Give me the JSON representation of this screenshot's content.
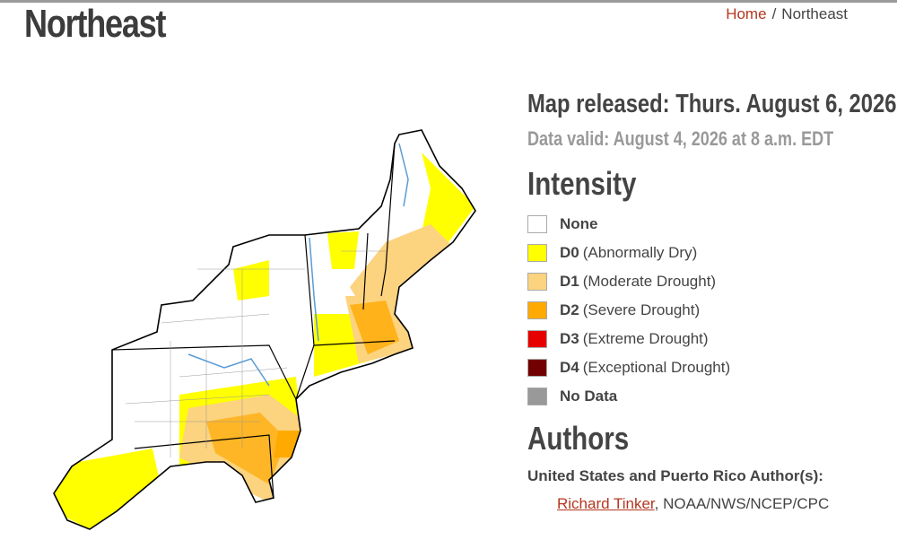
{
  "header": {
    "title": "Northeast",
    "breadcrumb": [
      "Home",
      "/",
      "Northeast"
    ]
  },
  "map_info": {
    "released": "Map released: Thurs. August 6, 2026",
    "valid": "Data valid: August 4, 2026 at 8 a.m. EDT"
  },
  "legend": {
    "title": "Intensity",
    "items": [
      {
        "code": "None",
        "label": "",
        "color": "#ffffff"
      },
      {
        "code": "D0",
        "label": "(Abnormally Dry)",
        "color": "#ffff00"
      },
      {
        "code": "D1",
        "label": "(Moderate Drought)",
        "color": "#fcd37f"
      },
      {
        "code": "D2",
        "label": "(Severe Drought)",
        "color": "#ffaa00"
      },
      {
        "code": "D3",
        "label": "(Extreme Drought)",
        "color": "#e60000"
      },
      {
        "code": "D4",
        "label": "(Exceptional Drought)",
        "color": "#730000"
      },
      {
        "code": "No Data",
        "label": "",
        "color": "#999999"
      }
    ]
  },
  "authors": {
    "title": "Authors",
    "subtitle": "United States and Puerto Rico Author(s):",
    "name": "Richard Tinker",
    "affiliation": ", NOAA/NWS/NCEP/CPC"
  }
}
